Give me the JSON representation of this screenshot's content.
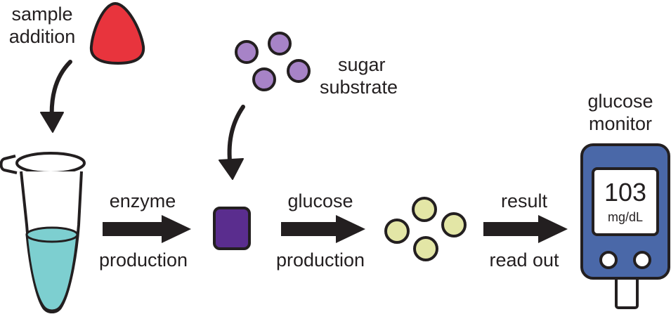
{
  "labels": {
    "sample_addition": [
      "sample",
      "addition"
    ],
    "sugar_substrate": [
      "sugar",
      "substrate"
    ],
    "glucose_monitor": [
      "glucose",
      "monitor"
    ],
    "enzyme_production": [
      "enzyme",
      "production"
    ],
    "glucose_production": [
      "glucose",
      "production"
    ],
    "result_read_out": [
      "result",
      "read out"
    ]
  },
  "monitor": {
    "reading": "103",
    "unit": "mg/dL"
  },
  "colors": {
    "outline": "#231f20",
    "sample_drop": "#e8343d",
    "sugar_circle": "#a783c7",
    "enzyme_square": "#5a2d8e",
    "glucose_circle": "#e3e6a6",
    "tube_liquid": "#7dcfd0",
    "monitor_body": "#4a68a8",
    "arrow": "#231f20"
  },
  "icons": [
    "sample-drop-icon",
    "sugar-substrate-icon",
    "enzyme-icon",
    "glucose-icon",
    "test-tube-icon",
    "glucose-monitor-icon"
  ]
}
